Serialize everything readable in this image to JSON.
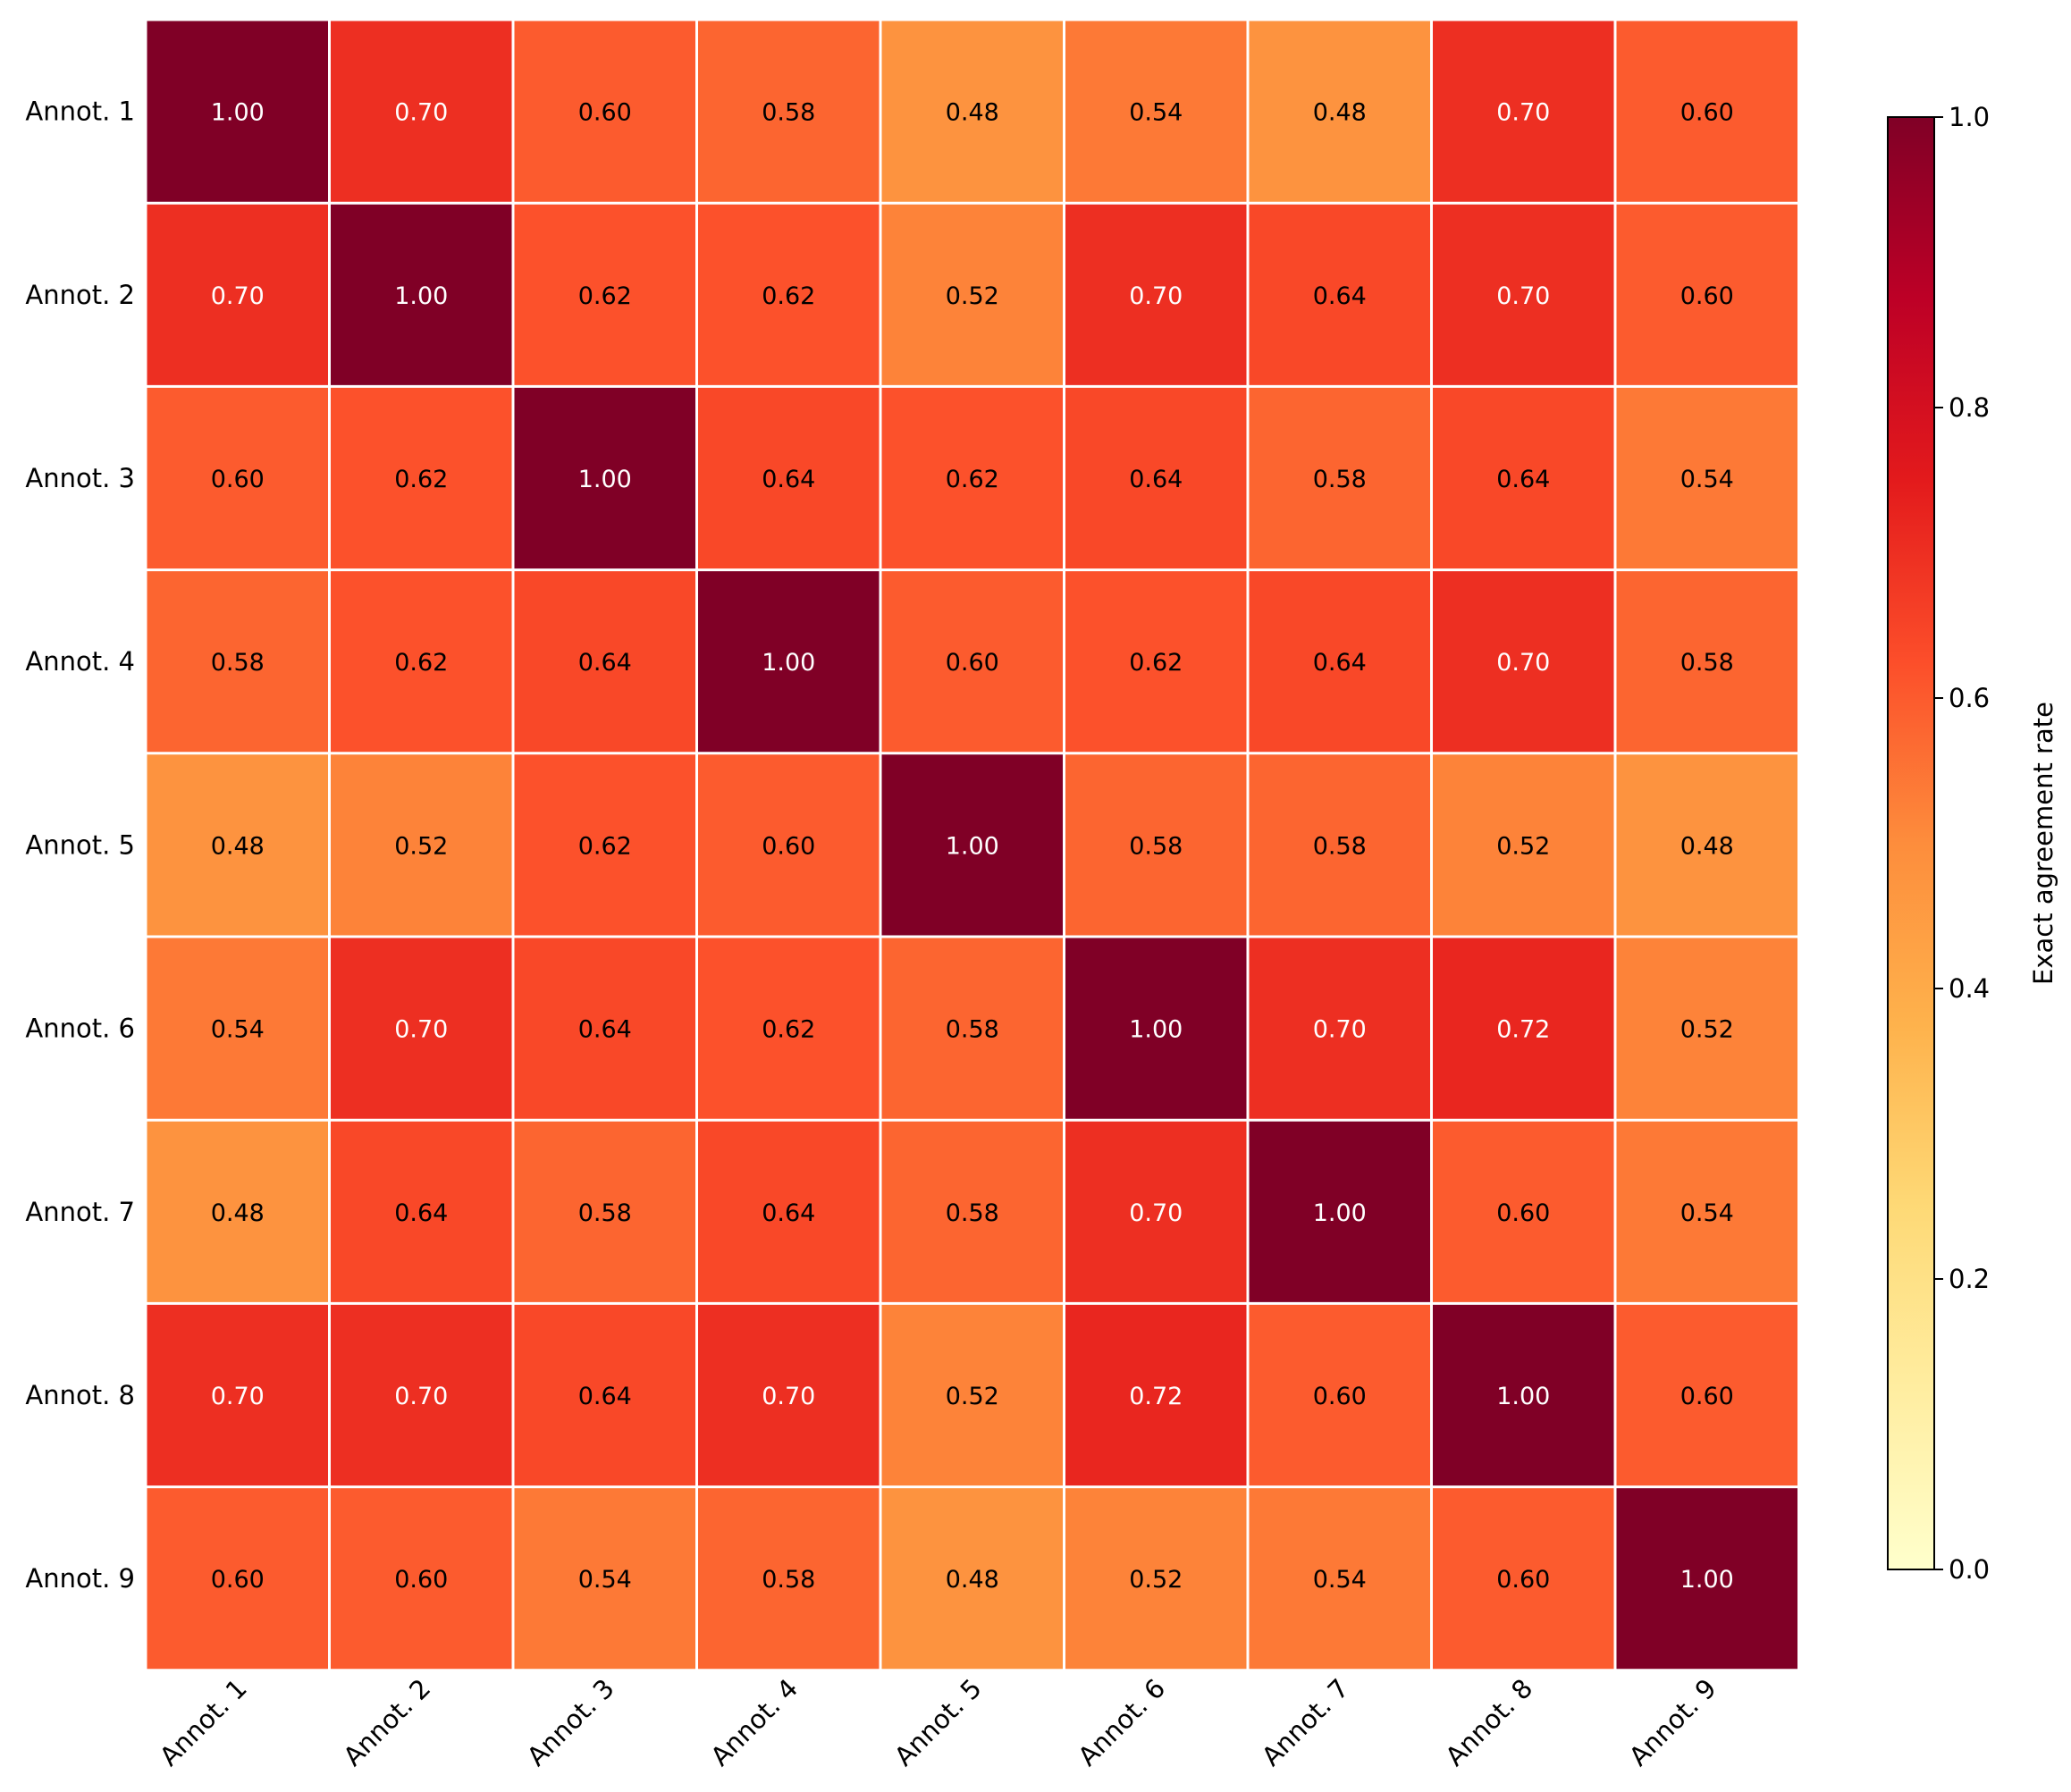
{
  "chart_data": {
    "type": "heatmap",
    "title": "",
    "xlabel": "",
    "ylabel": "",
    "x_labels": [
      "Annot. 1",
      "Annot. 2",
      "Annot. 3",
      "Annot. 4",
      "Annot. 5",
      "Annot. 6",
      "Annot. 7",
      "Annot. 8",
      "Annot. 9"
    ],
    "y_labels": [
      "Annot. 1",
      "Annot. 2",
      "Annot. 3",
      "Annot. 4",
      "Annot. 5",
      "Annot. 6",
      "Annot. 7",
      "Annot. 8",
      "Annot. 9"
    ],
    "values": [
      [
        1.0,
        0.7,
        0.6,
        0.58,
        0.48,
        0.54,
        0.48,
        0.7,
        0.6
      ],
      [
        0.7,
        1.0,
        0.62,
        0.62,
        0.52,
        0.7,
        0.64,
        0.7,
        0.6
      ],
      [
        0.6,
        0.62,
        1.0,
        0.64,
        0.62,
        0.64,
        0.58,
        0.64,
        0.54
      ],
      [
        0.58,
        0.62,
        0.64,
        1.0,
        0.6,
        0.62,
        0.64,
        0.7,
        0.58
      ],
      [
        0.48,
        0.52,
        0.62,
        0.6,
        1.0,
        0.58,
        0.58,
        0.52,
        0.48
      ],
      [
        0.54,
        0.7,
        0.64,
        0.62,
        0.58,
        1.0,
        0.7,
        0.72,
        0.52
      ],
      [
        0.48,
        0.64,
        0.58,
        0.64,
        0.58,
        0.7,
        1.0,
        0.6,
        0.54
      ],
      [
        0.7,
        0.7,
        0.64,
        0.7,
        0.52,
        0.72,
        0.6,
        1.0,
        0.6
      ],
      [
        0.6,
        0.6,
        0.54,
        0.58,
        0.48,
        0.52,
        0.54,
        0.6,
        1.0
      ]
    ],
    "value_format": "2 decimals",
    "colormap": "YlOrRd",
    "colormap_stops": [
      "#ffffcc",
      "#ffeda0",
      "#fed976",
      "#feb24c",
      "#fd8d3c",
      "#fc4e2a",
      "#e31a1c",
      "#bd0026",
      "#800026"
    ],
    "grid_line_color": "#ffffff",
    "colorbar": {
      "label": "Exact agreement rate",
      "range": [
        0.0,
        1.0
      ],
      "ticks": [
        0.0,
        0.2,
        0.4,
        0.6,
        0.8,
        1.0
      ],
      "tick_labels": [
        "0.0",
        "0.2",
        "0.4",
        "0.6",
        "0.8",
        "1.0"
      ],
      "placement": "right"
    }
  }
}
